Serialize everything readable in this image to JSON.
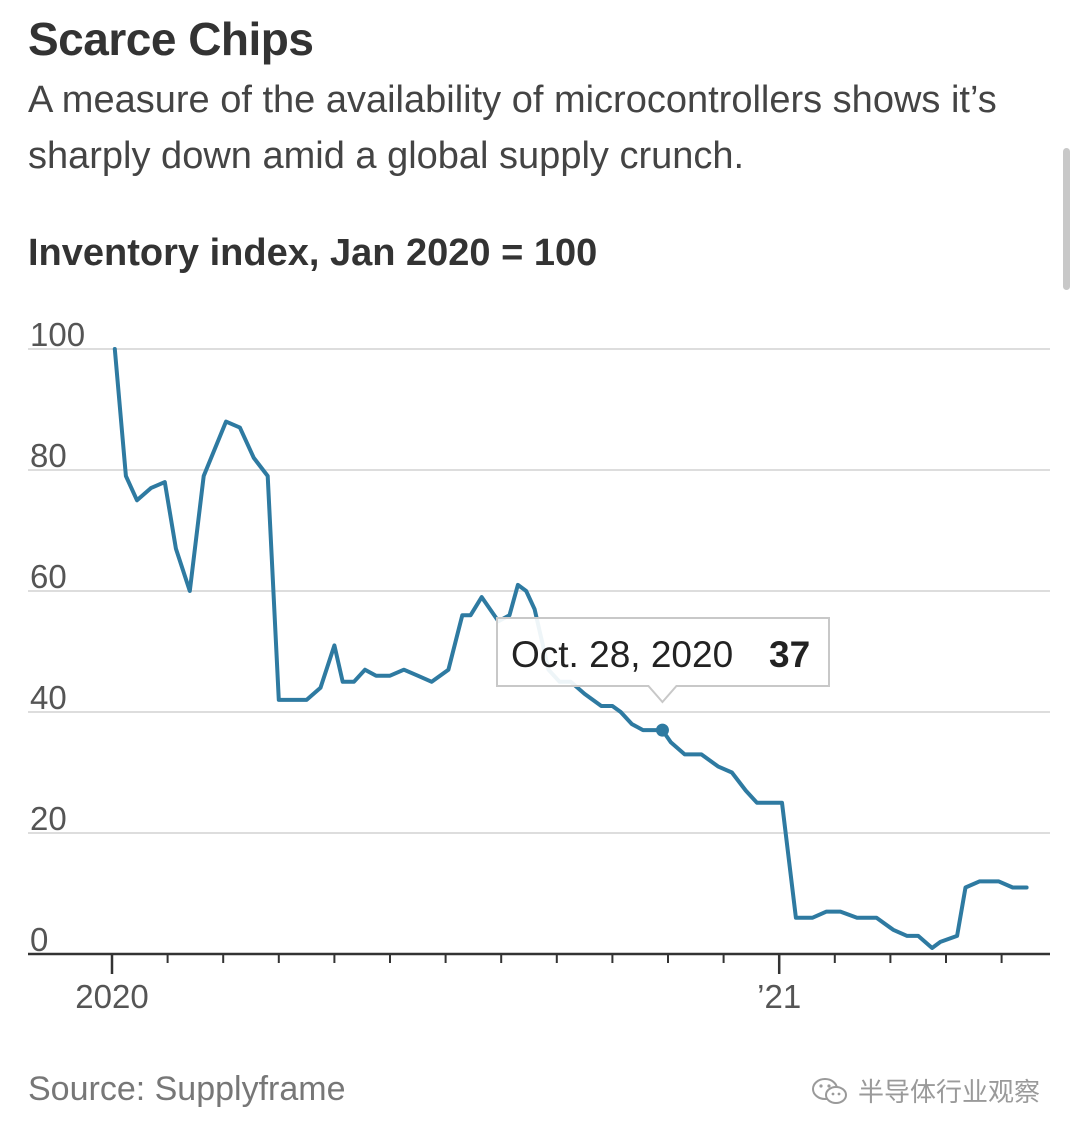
{
  "header": {
    "title": "Scarce Chips",
    "subtitle": "A measure of the availability of microcontrollers shows it’s sharply down amid a global supply crunch.",
    "axis_title": "Inventory index, Jan 2020 = 100"
  },
  "footer": {
    "source": "Source: Supplyframe",
    "watermark": "半导体行业观察"
  },
  "tooltip": {
    "date": "Oct. 28, 2020",
    "value": "37"
  },
  "colors": {
    "line": "#2e7aa1",
    "grid": "#dddddd",
    "axis": "#333333"
  },
  "chart_data": {
    "type": "line",
    "title": "Inventory index, Jan 2020 = 100",
    "xlabel": "",
    "ylabel": "",
    "ylim": [
      0,
      100
    ],
    "yticks": [
      0,
      20,
      40,
      60,
      80,
      100
    ],
    "xlim": [
      0,
      16.8
    ],
    "x_unit": "months since Jan 2020",
    "x_tick_labels": [
      {
        "x": 0,
        "label": "2020"
      },
      {
        "x": 12,
        "label": "’21"
      }
    ],
    "x_minor_ticks": [
      1,
      2,
      3,
      4,
      5,
      6,
      7,
      8,
      9,
      10,
      11,
      13,
      14,
      15,
      16
    ],
    "grid": true,
    "highlight": {
      "x": 9.9,
      "y": 37,
      "label": "Oct. 28, 2020"
    },
    "series": [
      {
        "name": "Inventory index",
        "x": [
          0.05,
          0.25,
          0.45,
          0.7,
          0.95,
          1.15,
          1.4,
          1.65,
          2.05,
          2.3,
          2.55,
          2.8,
          3.0,
          3.25,
          3.5,
          3.75,
          4.0,
          4.15,
          4.35,
          4.55,
          4.75,
          5.0,
          5.25,
          5.5,
          5.75,
          6.05,
          6.3,
          6.45,
          6.65,
          6.95,
          7.15,
          7.3,
          7.45,
          7.6,
          7.85,
          8.05,
          8.25,
          8.5,
          8.8,
          9.0,
          9.15,
          9.35,
          9.55,
          9.75,
          9.9,
          10.05,
          10.3,
          10.6,
          10.9,
          11.15,
          11.4,
          11.6,
          11.9,
          12.05,
          12.3,
          12.6,
          12.85,
          13.1,
          13.4,
          13.75,
          14.05,
          14.3,
          14.5,
          14.75,
          14.9,
          15.2,
          15.35,
          15.6,
          15.95,
          16.2,
          16.45
        ],
        "values": [
          100,
          79,
          75,
          77,
          78,
          67,
          60,
          79,
          88,
          87,
          82,
          79,
          42,
          42,
          42,
          44,
          51,
          45,
          45,
          47,
          46,
          46,
          47,
          46,
          45,
          47,
          56,
          56,
          59,
          55,
          56,
          61,
          60,
          57,
          47,
          45,
          45,
          43,
          41,
          41,
          40,
          38,
          37,
          37,
          37,
          35,
          33,
          33,
          31,
          30,
          27,
          25,
          25,
          25,
          6,
          6,
          7,
          7,
          6,
          6,
          4,
          3,
          3,
          1,
          2,
          3,
          11,
          12,
          12,
          11,
          11
        ]
      }
    ]
  }
}
